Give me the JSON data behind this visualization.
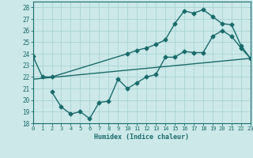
{
  "line1_x": [
    0,
    1,
    2,
    10,
    11,
    12,
    13,
    14,
    15,
    16,
    17,
    18,
    19,
    20,
    21,
    22,
    23
  ],
  "line1_y": [
    23.8,
    22.0,
    22.0,
    24.0,
    24.3,
    24.5,
    24.8,
    25.2,
    26.6,
    27.7,
    27.5,
    27.8,
    27.2,
    26.6,
    26.5,
    24.7,
    23.6
  ],
  "line2_x": [
    2,
    3,
    4,
    5,
    6,
    7,
    8,
    9,
    10,
    11,
    12,
    13,
    14,
    15,
    16,
    17,
    18,
    19,
    20,
    21,
    22,
    23
  ],
  "line2_y": [
    20.7,
    19.4,
    18.8,
    19.0,
    18.4,
    19.8,
    19.9,
    21.8,
    21.0,
    21.5,
    22.0,
    22.2,
    23.7,
    23.7,
    24.2,
    24.1,
    24.1,
    25.5,
    26.0,
    25.5,
    24.5,
    23.6
  ],
  "line3_x": [
    0,
    23
  ],
  "line3_y": [
    21.8,
    23.6
  ],
  "color": "#1a6b6b",
  "bg_color": "#cce8e8",
  "grid_color": "#aad4d4",
  "xlim": [
    0,
    23
  ],
  "ylim": [
    18,
    28.5
  ],
  "yticks": [
    18,
    19,
    20,
    21,
    22,
    23,
    24,
    25,
    26,
    27,
    28
  ],
  "xticks": [
    0,
    1,
    2,
    3,
    4,
    5,
    6,
    7,
    8,
    9,
    10,
    11,
    12,
    13,
    14,
    15,
    16,
    17,
    18,
    19,
    20,
    21,
    22,
    23
  ],
  "xlabel": "Humidex (Indice chaleur)",
  "marker": "D",
  "marker_size": 2.5,
  "linewidth": 1.0
}
